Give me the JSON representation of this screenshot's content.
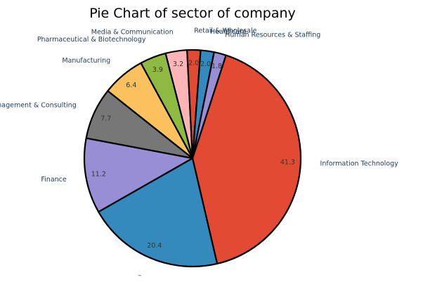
{
  "chart_data": {
    "type": "pie",
    "title": "Pie Chart of sector of company",
    "slices": [
      {
        "label": "Information Technology",
        "value": 41.3,
        "color": "#e24a33"
      },
      {
        "label": "–",
        "value": 20.4,
        "color": "#348abd"
      },
      {
        "label": "Finance",
        "value": 11.2,
        "color": "#988ed5"
      },
      {
        "label": "Management & Consulting",
        "value": 7.7,
        "color": "#777777"
      },
      {
        "label": "Manufacturing",
        "value": 6.4,
        "color": "#fbc15e"
      },
      {
        "label": "Pharmaceutical & Biotechnology",
        "value": 3.9,
        "color": "#8eba42"
      },
      {
        "label": "Media & Communication",
        "value": 3.2,
        "color": "#ffb5b8"
      },
      {
        "label": "Retail & Wholesale",
        "value": 2.0,
        "color": "#e24a33"
      },
      {
        "label": "Healthcare",
        "value": 2.0,
        "color": "#348abd"
      },
      {
        "label": "Human Resources & Staffing",
        "value": 1.8,
        "color": "#988ed5"
      }
    ],
    "start_angle_deg": 72,
    "direction": "clockwise",
    "percent_labels": true,
    "edgecolor": "#000000"
  }
}
